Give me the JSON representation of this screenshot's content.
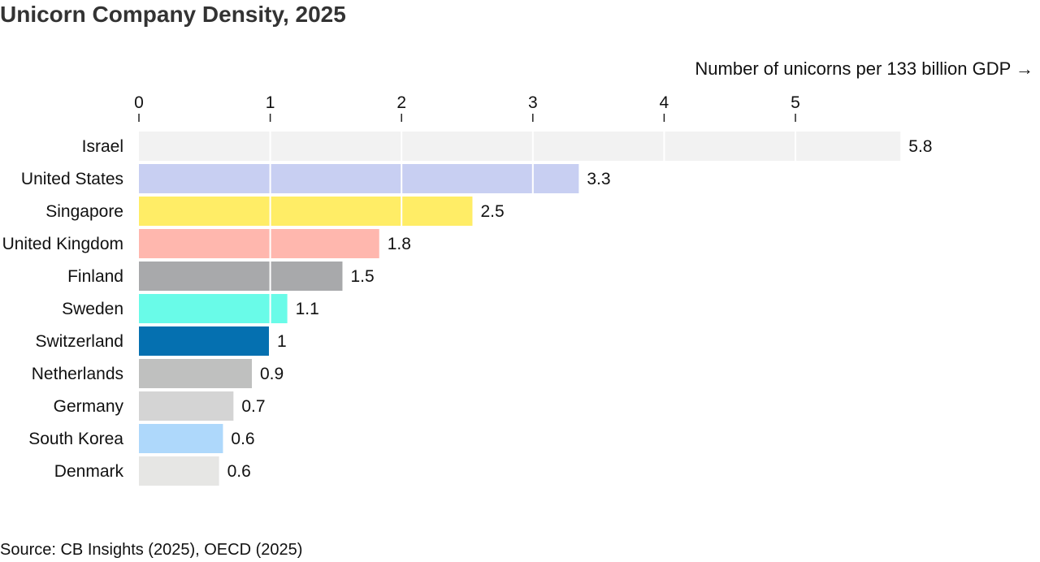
{
  "chart_data": {
    "type": "bar",
    "orientation": "horizontal",
    "title": "Unicorn Company Density, 2025",
    "xlabel": "Number of unicorns per 133 billion GDP →",
    "ylabel": "",
    "xlim": [
      0,
      5.8
    ],
    "xticks": [
      "0",
      "1",
      "2",
      "3",
      "4",
      "5"
    ],
    "grid": true,
    "categories": [
      "Israel",
      "United States",
      "Singapore",
      "United Kingdom",
      "Finland",
      "Sweden",
      "Switzerland",
      "Netherlands",
      "Germany",
      "South Korea",
      "Denmark"
    ],
    "values": [
      5.8,
      3.35,
      2.54,
      1.83,
      1.55,
      1.13,
      0.99,
      0.86,
      0.72,
      0.64,
      0.61
    ],
    "value_labels": [
      "5.8",
      "3.3",
      "2.5",
      "1.8",
      "1.5",
      "1.1",
      "1",
      "0.9",
      "0.7",
      "0.6",
      "0.6"
    ],
    "colors": [
      "#f2f2f2",
      "#c8cff2",
      "#ffed66",
      "#ffb7ae",
      "#a8a9ab",
      "#69fbe8",
      "#0570b0",
      "#bfc0bf",
      "#d4d4d4",
      "#aed8fb",
      "#e6e6e4"
    ],
    "source": "Source: CB Insights (2025), OECD (2025)"
  }
}
